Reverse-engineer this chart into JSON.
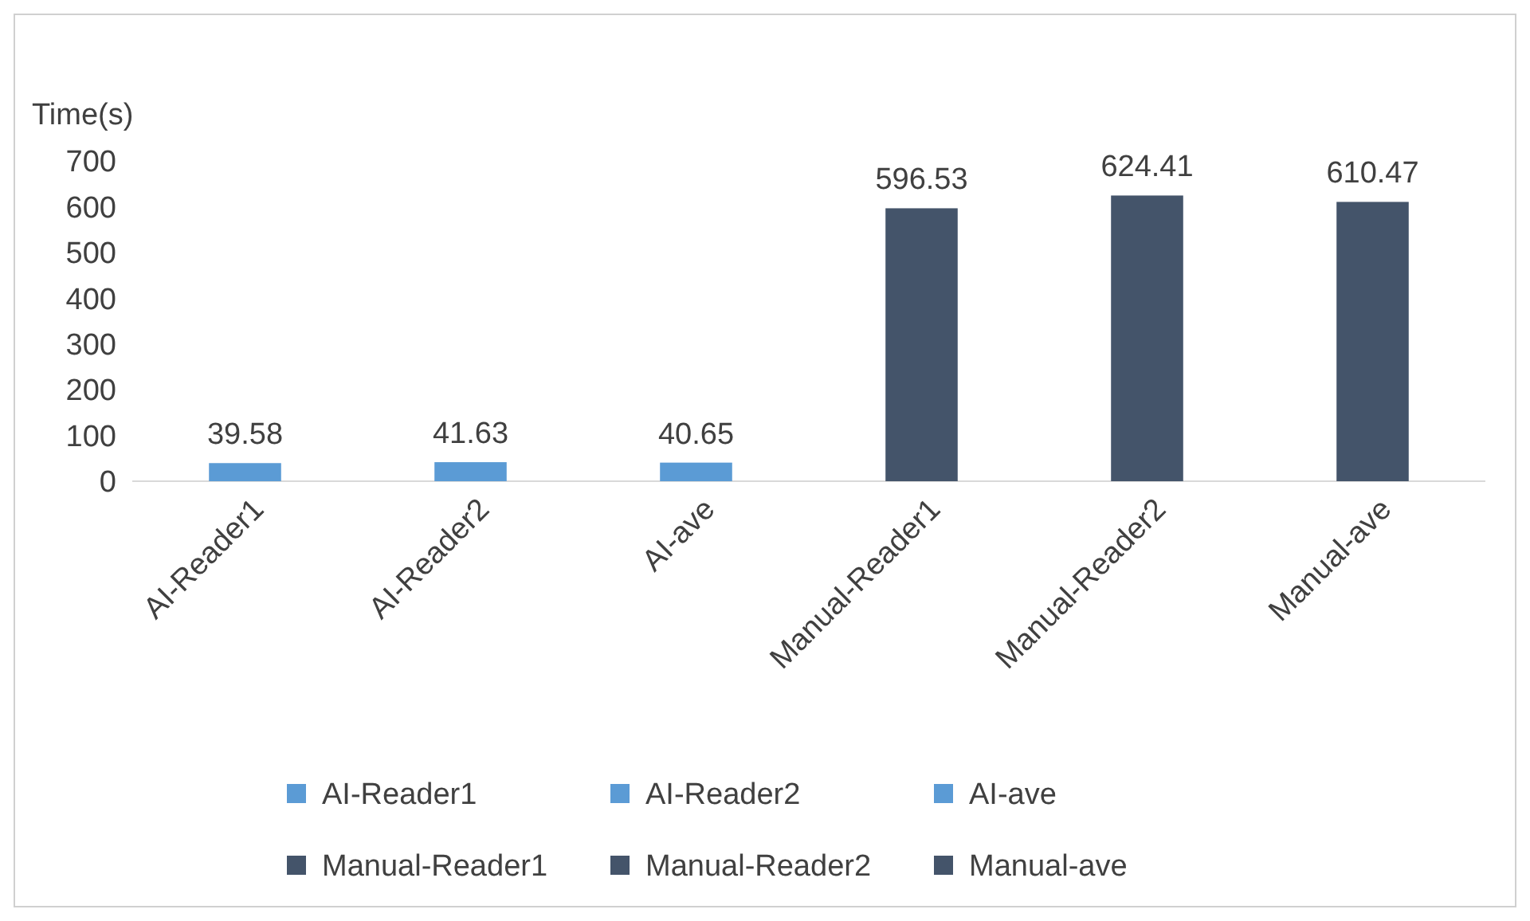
{
  "chart_data": {
    "type": "bar",
    "ylabel": "Time(s)",
    "stacked": true,
    "categories": [
      "AI-Reader1",
      "AI-Reader2",
      "AI-ave",
      "Manual-Reader1",
      "Manual-Reader2",
      "Manual-ave"
    ],
    "series": [
      {
        "name": "AI-Reader1",
        "color": "#5b9bd5",
        "values": [
          39.58,
          null,
          null,
          null,
          null,
          null
        ]
      },
      {
        "name": "AI-Reader2",
        "color": "#5b9bd5",
        "values": [
          null,
          41.63,
          null,
          null,
          null,
          null
        ]
      },
      {
        "name": "AI-ave",
        "color": "#5b9bd5",
        "values": [
          null,
          null,
          40.65,
          null,
          null,
          null
        ]
      },
      {
        "name": "Manual-Reader1",
        "color": "#44546a",
        "values": [
          null,
          null,
          null,
          596.53,
          null,
          null
        ]
      },
      {
        "name": "Manual-Reader2",
        "color": "#44546a",
        "values": [
          null,
          null,
          null,
          null,
          624.41,
          null
        ]
      },
      {
        "name": "Manual-ave",
        "color": "#44546a",
        "values": [
          null,
          null,
          null,
          null,
          null,
          610.47
        ]
      }
    ],
    "ylim": [
      0,
      700
    ],
    "yticks": [
      0,
      100,
      200,
      300,
      400,
      500,
      600,
      700
    ],
    "data_labels": true,
    "legend": "bottom",
    "grid": false
  }
}
